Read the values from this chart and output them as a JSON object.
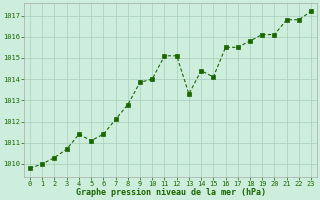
{
  "x": [
    0,
    1,
    2,
    3,
    4,
    5,
    6,
    7,
    8,
    9,
    10,
    11,
    12,
    13,
    14,
    15,
    16,
    17,
    18,
    19,
    20,
    21,
    22,
    23
  ],
  "y": [
    1009.8,
    1010.0,
    1010.3,
    1010.7,
    1011.4,
    1011.1,
    1011.4,
    1012.1,
    1012.8,
    1013.85,
    1014.0,
    1015.1,
    1015.1,
    1013.3,
    1014.4,
    1014.1,
    1015.5,
    1015.5,
    1015.8,
    1016.1,
    1016.1,
    1016.8,
    1016.8,
    1017.2
  ],
  "line_color": "#1a6600",
  "marker_color": "#1a6600",
  "bg_color": "#ceeedd",
  "grid_color": "#aaccbb",
  "border_color": "#aaaaaa",
  "xlabel": "Graphe pression niveau de la mer (hPa)",
  "xlabel_color": "#1a6600",
  "tick_color": "#1a6600",
  "yticks": [
    1010,
    1011,
    1012,
    1013,
    1014,
    1015,
    1016,
    1017
  ],
  "xticks": [
    0,
    1,
    2,
    3,
    4,
    5,
    6,
    7,
    8,
    9,
    10,
    11,
    12,
    13,
    14,
    15,
    16,
    17,
    18,
    19,
    20,
    21,
    22,
    23
  ],
  "ylim": [
    1009.4,
    1017.6
  ],
  "xlim": [
    -0.5,
    23.5
  ]
}
